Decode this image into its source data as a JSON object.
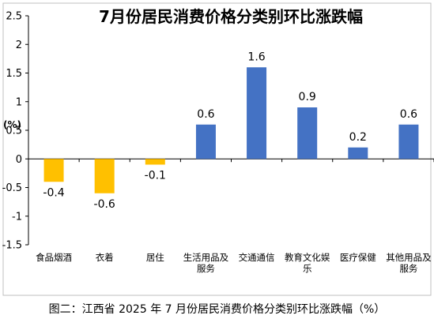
{
  "chart_data": {
    "type": "bar",
    "title": "7月份居民消费价格分类别环比涨跌幅",
    "ylabel": "(%)",
    "categories": [
      [
        "食品烟酒"
      ],
      [
        "衣着"
      ],
      [
        "居住"
      ],
      [
        "生活用品及",
        "服务"
      ],
      [
        "交通通信"
      ],
      [
        "教育文化娱",
        "乐"
      ],
      [
        "医疗保健"
      ],
      [
        "其他用品及",
        "服务"
      ]
    ],
    "values": [
      -0.4,
      -0.6,
      -0.1,
      0.6,
      1.6,
      0.9,
      0.2,
      0.6
    ],
    "value_labels": [
      "-0.4",
      "-0.6",
      "-0.1",
      "0.6",
      "1.6",
      "0.9",
      "0.2",
      "0.6"
    ],
    "ylim": [
      -1.5,
      2.5
    ],
    "yticks": [
      "-1.5",
      "-1",
      "-0.5",
      "0",
      "0.5",
      "1",
      "1.5",
      "2",
      "2.5"
    ],
    "ytick_values": [
      -1.5,
      -1,
      -0.5,
      0,
      0.5,
      1,
      1.5,
      2,
      2.5
    ],
    "grid": false,
    "colors": {
      "positive": "#4472C4",
      "negative": "#FFC000",
      "axis": "#000000"
    }
  },
  "caption": "图二：江西省 2025 年 7 月份居民消费价格分类别环比涨跌幅（%）"
}
